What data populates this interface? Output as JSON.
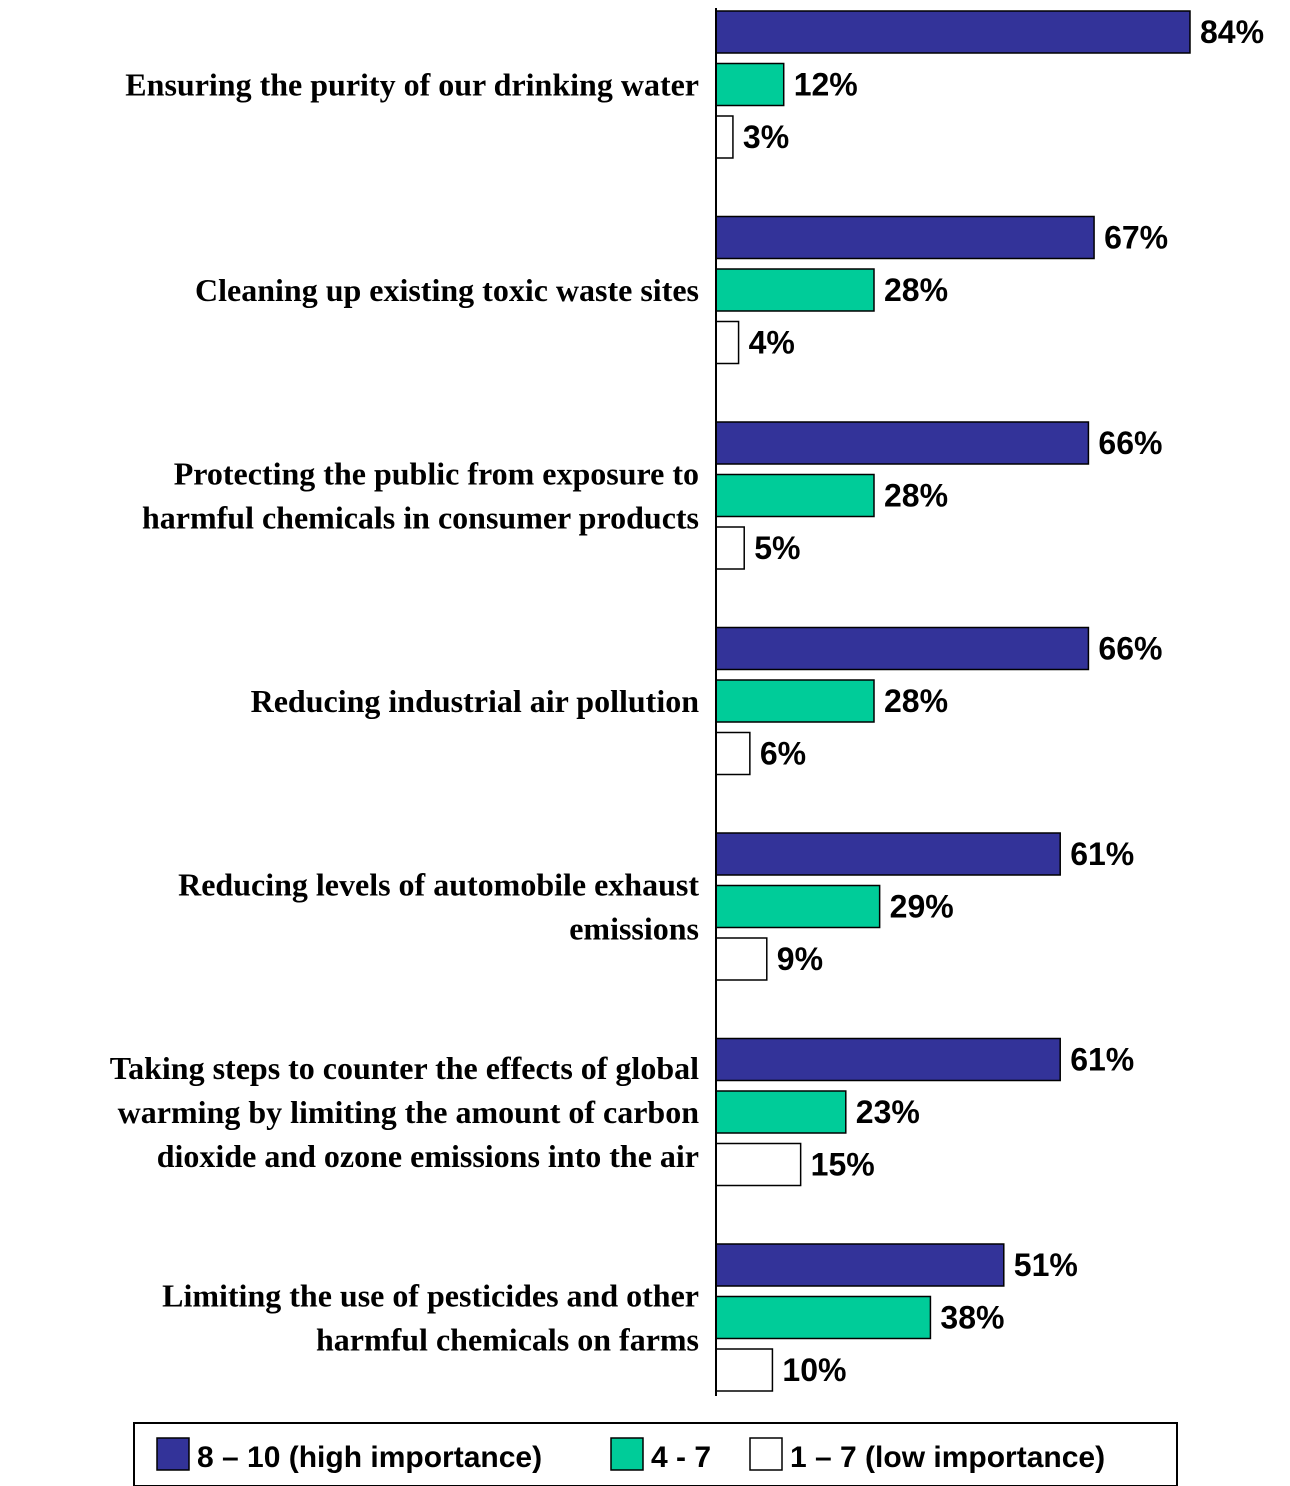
{
  "chart_data": {
    "type": "bar",
    "orientation": "horizontal",
    "categories": [
      [
        "Ensuring the purity of our drinking water"
      ],
      [
        "Cleaning up existing toxic waste sites"
      ],
      [
        "Protecting the public from exposure to",
        "harmful chemicals in consumer products"
      ],
      [
        "Reducing industrial air pollution"
      ],
      [
        "Reducing levels of automobile exhaust",
        "emissions"
      ],
      [
        "Taking steps to counter the effects of global",
        "warming by limiting the amount of carbon",
        "dioxide and ozone emissions into the air"
      ],
      [
        "Limiting the use of pesticides and other",
        "harmful chemicals on farms"
      ]
    ],
    "series": [
      {
        "name": "8 – 10 (high importance)",
        "color": "#333399",
        "values": [
          84,
          67,
          66,
          66,
          61,
          61,
          51
        ],
        "labels": [
          "84%",
          "67%",
          "66%",
          "66%",
          "61%",
          "61%",
          "51%"
        ]
      },
      {
        "name": "4 - 7",
        "color": "#00CC99",
        "values": [
          12,
          28,
          28,
          28,
          29,
          23,
          38
        ],
        "labels": [
          "12%",
          "28%",
          "28%",
          "28%",
          "29%",
          "23%",
          "38%"
        ]
      },
      {
        "name": "1 – 7 (low importance)",
        "color": "#FFFFFF",
        "values": [
          3,
          4,
          5,
          6,
          9,
          15,
          10
        ],
        "labels": [
          "3%",
          "4%",
          "5%",
          "6%",
          "9%",
          "15%",
          "10%"
        ]
      }
    ],
    "xlim": [
      0,
      84
    ],
    "grid": false,
    "legend_position": "bottom"
  }
}
